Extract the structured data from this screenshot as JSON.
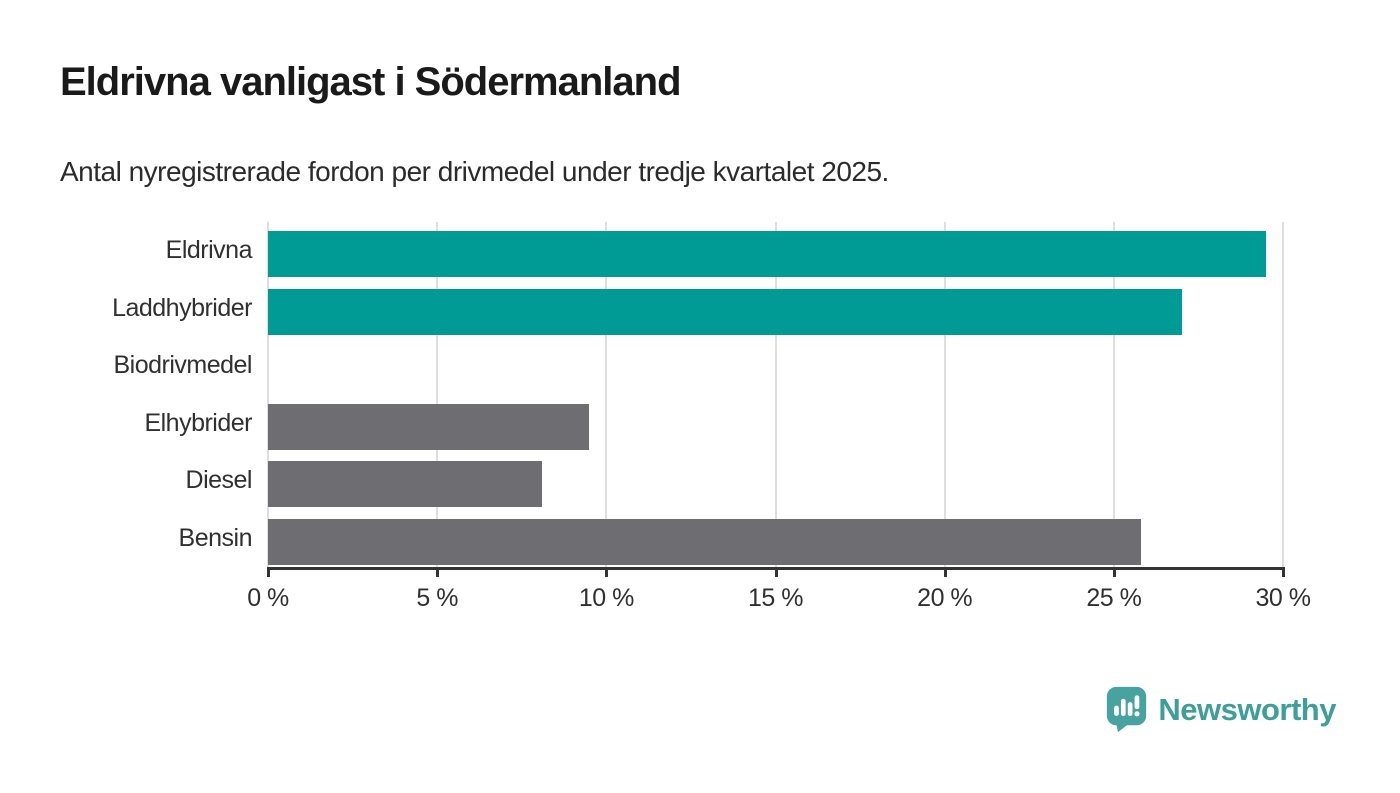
{
  "header": {
    "title": "Eldrivna vanligast i Södermanland",
    "subtitle": "Antal nyregistrerade fordon per drivmedel under tredje kvartalet 2025."
  },
  "chart_data": {
    "type": "bar",
    "orientation": "horizontal",
    "title": "Eldrivna vanligast i Södermanland",
    "subtitle": "Antal nyregistrerade fordon per drivmedel under tredje kvartalet 2025.",
    "categories": [
      "Eldrivna",
      "Laddhybrider",
      "Biodrivmedel",
      "Elhybrider",
      "Diesel",
      "Bensin"
    ],
    "values": [
      29.5,
      27.0,
      0,
      9.5,
      8.1,
      25.8
    ],
    "unit": "%",
    "bar_colors": [
      "#009b95",
      "#009b95",
      "#009b95",
      "#6d6d72",
      "#6d6d72",
      "#6d6d72"
    ],
    "xlabel": "",
    "ylabel": "",
    "xlim": [
      0,
      30
    ],
    "x_ticks": [
      0,
      5,
      10,
      15,
      20,
      25,
      30
    ],
    "x_tick_labels": [
      "0 %",
      "5 %",
      "10 %",
      "15 %",
      "20 %",
      "25 %",
      "30 %"
    ],
    "grid": true,
    "legend": false
  },
  "colors": {
    "accent_teal": "#009b95",
    "bar_gray": "#6d6d72",
    "gridline": "#dedede",
    "axis": "#333333",
    "text_dark": "#1a1a1a",
    "logo_teal": "#3e9e9a"
  },
  "branding": {
    "logo_text": "Newsworthy",
    "logo_icon": "bar-chart-speech-bubble-icon"
  }
}
